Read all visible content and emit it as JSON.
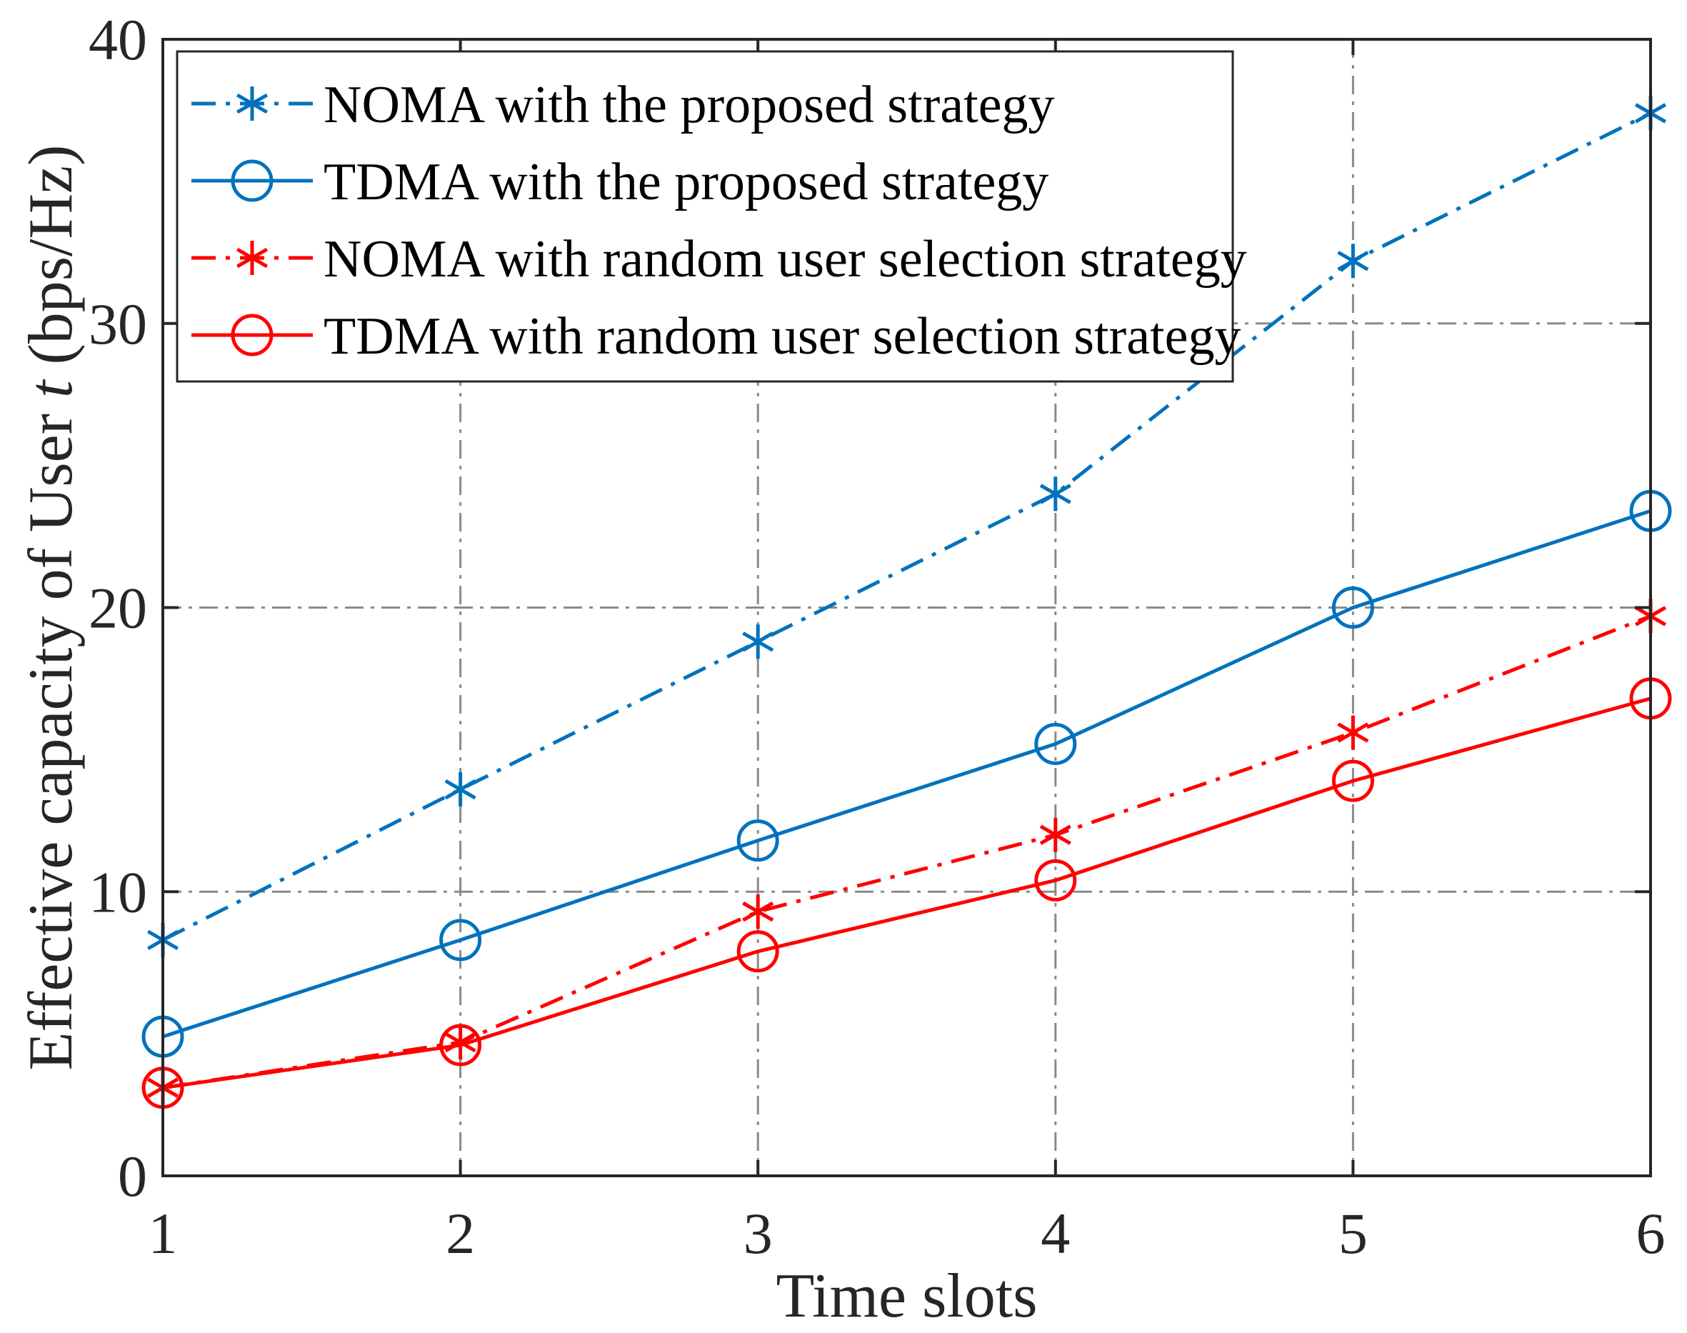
{
  "chart_data": {
    "type": "line",
    "xlabel": "Time slots",
    "ylabel_prefix": "Effective capacity of User ",
    "ylabel_var": "t",
    "ylabel_suffix": " (bps/Hz)",
    "xlim": [
      1,
      6
    ],
    "ylim": [
      0,
      40
    ],
    "xticks": [
      "1",
      "2",
      "3",
      "4",
      "5",
      "6"
    ],
    "yticks": [
      "0",
      "10",
      "20",
      "30",
      "40"
    ],
    "grid": true,
    "legend_position": "top-left",
    "x": [
      1,
      2,
      3,
      4,
      5,
      6
    ],
    "series": [
      {
        "name": "NOMA with the proposed strategy",
        "values": [
          8.3,
          13.6,
          18.8,
          24.0,
          32.2,
          37.4
        ],
        "color": "#0072BD",
        "line": "dashdot",
        "marker": "asterisk"
      },
      {
        "name": "TDMA with the proposed strategy",
        "values": [
          4.9,
          8.3,
          11.8,
          15.2,
          20.0,
          23.4
        ],
        "color": "#0072BD",
        "line": "solid",
        "marker": "circle"
      },
      {
        "name": "NOMA with random user selection strategy",
        "values": [
          3.1,
          4.7,
          9.3,
          12.0,
          15.6,
          19.7
        ],
        "color": "#FF0000",
        "line": "dashdot",
        "marker": "asterisk"
      },
      {
        "name": "TDMA with random user selection strategy",
        "values": [
          3.1,
          4.6,
          7.9,
          10.4,
          13.9,
          16.8
        ],
        "color": "#FF0000",
        "line": "solid",
        "marker": "circle"
      }
    ]
  }
}
